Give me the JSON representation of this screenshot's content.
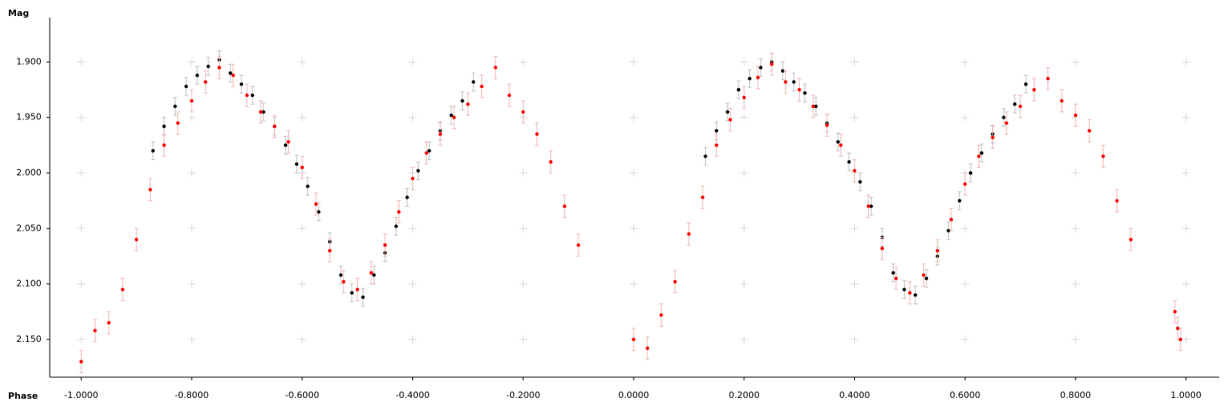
{
  "chart_data": {
    "type": "scatter",
    "x_label": "Phase",
    "y_label": "Mag",
    "xlim": [
      -1.057,
      1.06
    ],
    "ylim": [
      1.86,
      2.184
    ],
    "y_inverted": true,
    "grid": true,
    "xticks": [
      {
        "value": -1.0,
        "label": "-1.0000"
      },
      {
        "value": -0.8,
        "label": "-0.8000"
      },
      {
        "value": -0.6,
        "label": "-0.6000"
      },
      {
        "value": -0.4,
        "label": "-0.4000"
      },
      {
        "value": -0.2,
        "label": "-0.2000"
      },
      {
        "value": 0,
        "label": "0.0000"
      },
      {
        "value": 0.2,
        "label": "0.2000"
      },
      {
        "value": 0.4,
        "label": "0.4000"
      },
      {
        "value": 0.6,
        "label": "0.6000"
      },
      {
        "value": 0.8,
        "label": "0.8000"
      },
      {
        "value": 1.0,
        "label": "1.0000"
      }
    ],
    "yticks": [
      {
        "value": 1.9,
        "label": "1.900"
      },
      {
        "value": 1.95,
        "label": "1.950"
      },
      {
        "value": 2.0,
        "label": "2.000"
      },
      {
        "value": 2.05,
        "label": "2.050"
      },
      {
        "value": 2.1,
        "label": "2.100"
      },
      {
        "value": 2.15,
        "label": "2.150"
      }
    ],
    "series": [
      {
        "color": "#000000",
        "error_color": "#c0c0c0",
        "yerr": 0.008,
        "x": [
          -0.87,
          -0.85,
          -0.83,
          -0.81,
          -0.79,
          -0.77,
          -0.75,
          -0.73,
          -0.71,
          -0.69,
          -0.67,
          -0.65,
          -0.63,
          -0.61,
          -0.59,
          -0.57,
          -0.55,
          -0.53,
          -0.51,
          -0.49,
          -0.47,
          -0.45,
          -0.43,
          -0.41,
          -0.39,
          -0.37,
          -0.35,
          -0.33,
          -0.31,
          -0.29,
          0.13,
          0.15,
          0.17,
          0.19,
          0.21,
          0.23,
          0.25,
          0.27,
          0.29,
          0.31,
          0.33,
          0.35,
          0.37,
          0.39,
          0.41,
          0.43,
          0.45,
          0.47,
          0.49,
          0.51,
          0.53,
          0.55,
          0.57,
          0.59,
          0.61,
          0.63,
          0.65,
          0.67,
          0.69,
          0.71
        ],
        "values": [
          1.98,
          1.958,
          1.94,
          1.922,
          1.912,
          1.904,
          1.898,
          1.91,
          1.92,
          1.93,
          1.945,
          1.958,
          1.975,
          1.992,
          2.012,
          2.035,
          2.062,
          2.092,
          2.108,
          2.112,
          2.092,
          2.072,
          2.048,
          2.022,
          1.998,
          1.98,
          1.962,
          1.948,
          1.935,
          1.918,
          1.985,
          1.962,
          1.945,
          1.925,
          1.915,
          1.905,
          1.9,
          1.908,
          1.918,
          1.928,
          1.94,
          1.955,
          1.972,
          1.99,
          2.008,
          2.03,
          2.058,
          2.09,
          2.105,
          2.11,
          2.095,
          2.075,
          2.052,
          2.025,
          2.0,
          1.982,
          1.965,
          1.95,
          1.938,
          1.92
        ]
      },
      {
        "color": "#ff0000",
        "error_color": "#f4b4b4",
        "yerr": 0.01,
        "x": [
          -1.0,
          -0.975,
          -0.95,
          -0.925,
          -0.9,
          -0.875,
          -0.85,
          -0.825,
          -0.8,
          -0.775,
          -0.75,
          -0.725,
          -0.7,
          -0.675,
          -0.65,
          -0.625,
          -0.6,
          -0.575,
          -0.55,
          -0.525,
          -0.5,
          -0.475,
          -0.45,
          -0.425,
          -0.4,
          -0.375,
          -0.35,
          -0.325,
          -0.3,
          -0.275,
          -0.25,
          -0.225,
          -0.2,
          -0.175,
          -0.15,
          -0.125,
          -0.1,
          0.0,
          0.025,
          0.05,
          0.075,
          0.1,
          0.125,
          0.15,
          0.175,
          0.2,
          0.225,
          0.25,
          0.275,
          0.3,
          0.325,
          0.35,
          0.375,
          0.4,
          0.425,
          0.45,
          0.475,
          0.5,
          0.525,
          0.55,
          0.575,
          0.6,
          0.625,
          0.65,
          0.675,
          0.7,
          0.725,
          0.75,
          0.775,
          0.8,
          0.825,
          0.85,
          0.875,
          0.9,
          0.98,
          0.985,
          0.99
        ],
        "values": [
          2.17,
          2.142,
          2.135,
          2.105,
          2.06,
          2.015,
          1.975,
          1.955,
          1.935,
          1.918,
          1.905,
          1.912,
          1.93,
          1.945,
          1.958,
          1.972,
          1.995,
          2.028,
          2.07,
          2.098,
          2.105,
          2.09,
          2.065,
          2.035,
          2.005,
          1.982,
          1.965,
          1.95,
          1.938,
          1.922,
          1.905,
          1.93,
          1.945,
          1.965,
          1.99,
          2.03,
          2.065,
          2.15,
          2.158,
          2.128,
          2.098,
          2.055,
          2.022,
          1.975,
          1.952,
          1.932,
          1.914,
          1.902,
          1.918,
          1.925,
          1.94,
          1.957,
          1.975,
          1.998,
          2.03,
          2.068,
          2.095,
          2.108,
          2.092,
          2.07,
          2.042,
          2.01,
          1.985,
          1.968,
          1.955,
          1.94,
          1.925,
          1.915,
          1.935,
          1.948,
          1.962,
          1.985,
          2.025,
          2.06,
          2.125,
          2.14,
          2.15
        ]
      }
    ]
  }
}
